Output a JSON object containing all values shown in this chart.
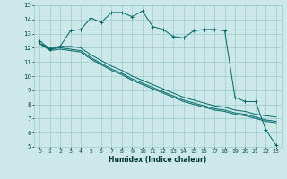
{
  "xlabel": "Humidex (Indice chaleur)",
  "bg_color": "#cce8e8",
  "grid_color": "#99cccc",
  "line_color": "#006666",
  "xlim": [
    -0.5,
    23.5
  ],
  "ylim": [
    5,
    15
  ],
  "xticks": [
    0,
    1,
    2,
    3,
    4,
    5,
    6,
    7,
    8,
    9,
    10,
    11,
    12,
    13,
    14,
    15,
    16,
    17,
    18,
    19,
    20,
    21,
    22,
    23
  ],
  "yticks": [
    5,
    6,
    7,
    8,
    9,
    10,
    11,
    12,
    13,
    14,
    15
  ],
  "line1_x": [
    0,
    1,
    2,
    3,
    4,
    5,
    6,
    7,
    8,
    9,
    10,
    11,
    12,
    13,
    14,
    15,
    16,
    17,
    18,
    19,
    20,
    21,
    22,
    23
  ],
  "line1_y": [
    12.5,
    11.9,
    12.1,
    13.2,
    13.3,
    14.1,
    13.8,
    14.5,
    14.5,
    14.2,
    14.6,
    13.5,
    13.3,
    12.8,
    12.7,
    13.2,
    13.3,
    13.3,
    13.2,
    8.5,
    8.2,
    8.2,
    6.2,
    5.1
  ],
  "line2_x": [
    0,
    1,
    2,
    3,
    4,
    5,
    6,
    7,
    8,
    9,
    10,
    11,
    12,
    13,
    14,
    15,
    16,
    17,
    18,
    19,
    20,
    21,
    22,
    23
  ],
  "line2_y": [
    12.3,
    12.0,
    12.1,
    12.1,
    12.0,
    11.5,
    11.1,
    10.7,
    10.4,
    10.0,
    9.7,
    9.4,
    9.1,
    8.8,
    8.5,
    8.3,
    8.1,
    7.9,
    7.8,
    7.6,
    7.5,
    7.3,
    7.2,
    7.1
  ],
  "line3_x": [
    0,
    1,
    2,
    3,
    4,
    5,
    6,
    7,
    8,
    9,
    10,
    11,
    12,
    13,
    14,
    15,
    16,
    17,
    18,
    19,
    20,
    21,
    22,
    23
  ],
  "line3_y": [
    12.3,
    11.9,
    12.0,
    11.9,
    11.8,
    11.3,
    10.9,
    10.5,
    10.2,
    9.8,
    9.5,
    9.2,
    8.9,
    8.6,
    8.3,
    8.1,
    7.9,
    7.7,
    7.6,
    7.4,
    7.3,
    7.1,
    6.9,
    6.8
  ],
  "line4_x": [
    0,
    1,
    2,
    3,
    4,
    5,
    6,
    7,
    8,
    9,
    10,
    11,
    12,
    13,
    14,
    15,
    16,
    17,
    18,
    19,
    20,
    21,
    22,
    23
  ],
  "line4_y": [
    12.3,
    11.8,
    11.9,
    11.8,
    11.7,
    11.2,
    10.8,
    10.4,
    10.1,
    9.7,
    9.4,
    9.1,
    8.8,
    8.5,
    8.2,
    8.0,
    7.8,
    7.6,
    7.5,
    7.3,
    7.2,
    7.0,
    6.8,
    6.7
  ]
}
